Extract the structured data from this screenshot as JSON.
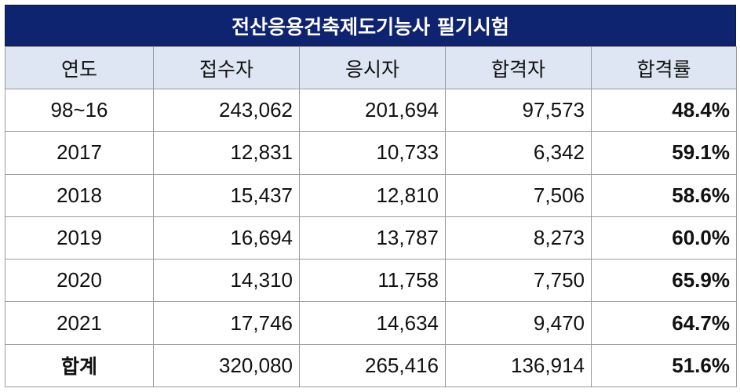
{
  "title": "전산응용건축제도기능사 필기시험",
  "headers": [
    "연도",
    "접수자",
    "응시자",
    "합격자",
    "합격률"
  ],
  "rows": [
    {
      "year": "98~16",
      "applicants": "243,062",
      "examinees": "201,694",
      "passers": "97,573",
      "rate": "48.4%"
    },
    {
      "year": "2017",
      "applicants": "12,831",
      "examinees": "10,733",
      "passers": "6,342",
      "rate": "59.1%"
    },
    {
      "year": "2018",
      "applicants": "15,437",
      "examinees": "12,810",
      "passers": "7,506",
      "rate": "58.6%"
    },
    {
      "year": "2019",
      "applicants": "16,694",
      "examinees": "13,787",
      "passers": "8,273",
      "rate": "60.0%"
    },
    {
      "year": "2020",
      "applicants": "14,310",
      "examinees": "11,758",
      "passers": "7,750",
      "rate": "65.9%"
    },
    {
      "year": "2021",
      "applicants": "17,746",
      "examinees": "14,634",
      "passers": "9,470",
      "rate": "64.7%"
    }
  ],
  "total": {
    "year": "합계",
    "applicants": "320,080",
    "examinees": "265,416",
    "passers": "136,914",
    "rate": "51.6%"
  },
  "colors": {
    "title_bg": "#0f2470",
    "header_bg": "#dde6f2",
    "border": "#9a9a9a"
  }
}
